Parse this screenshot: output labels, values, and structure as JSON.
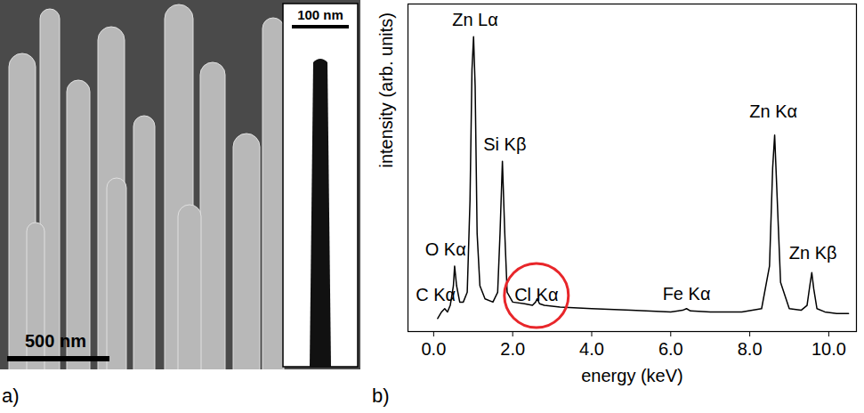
{
  "image_panel": {
    "letter": "a)",
    "scale_bar": "500 nm",
    "inset_scale_bar": "100 nm"
  },
  "chart_data": {
    "type": "line",
    "letter": "b)",
    "x_label": "energy (keV)",
    "y_label": "intensity (arb. units)",
    "color": "#000000",
    "x": [
      0.1,
      0.2,
      0.28,
      0.35,
      0.42,
      0.5,
      0.53,
      0.58,
      0.66,
      0.75,
      0.85,
      0.92,
      0.97,
      1.01,
      1.05,
      1.1,
      1.17,
      1.3,
      1.5,
      1.62,
      1.68,
      1.74,
      1.8,
      1.86,
      2.0,
      2.3,
      2.5,
      2.58,
      2.62,
      2.68,
      2.8,
      3.2,
      4.0,
      5.0,
      6.0,
      6.3,
      6.4,
      6.5,
      7.0,
      7.8,
      8.3,
      8.5,
      8.58,
      8.63,
      8.68,
      8.78,
      9.0,
      9.3,
      9.45,
      9.52,
      9.57,
      9.62,
      9.7,
      9.9,
      10.2,
      10.5
    ],
    "values": [
      4,
      6,
      7,
      6,
      8,
      14,
      20,
      14,
      9,
      9,
      12,
      40,
      80,
      90,
      75,
      30,
      14,
      10,
      9,
      12,
      30,
      52,
      30,
      12,
      9,
      8.5,
      8,
      9,
      10,
      8.5,
      8,
      7.5,
      7,
      6.5,
      6,
      6.5,
      7,
      6.3,
      6,
      6,
      7,
      20,
      50,
      60,
      45,
      15,
      7,
      6.5,
      8,
      14,
      18,
      13,
      7,
      6,
      5.5,
      5.5
    ],
    "xlim": [
      -0.65,
      10.7
    ],
    "xticks": [
      {
        "value": 0,
        "label": "0.0"
      },
      {
        "value": 2,
        "label": "2.0"
      },
      {
        "value": 4,
        "label": "4.0"
      },
      {
        "value": 6,
        "label": "6.0"
      },
      {
        "value": 8,
        "label": "8.0"
      },
      {
        "value": 10,
        "label": "10.0"
      }
    ],
    "ylim": [
      0,
      100
    ],
    "tick_labels": "x",
    "annotations": [
      {
        "text": "Zn Lα",
        "x": 1.05,
        "y": 95
      },
      {
        "text": "Si Kβ",
        "x": 1.8,
        "y": 57
      },
      {
        "text": "O Kα",
        "x": 0.3,
        "y": 25
      },
      {
        "text": "C Kα",
        "x": 0.05,
        "y": 11
      },
      {
        "text": "Cl Kα",
        "x": 2.6,
        "y": 11,
        "color": "#e8262a"
      },
      {
        "text": "Fe Kα",
        "x": 6.4,
        "y": 11.5
      },
      {
        "text": "Zn Kα",
        "x": 8.6,
        "y": 67
      },
      {
        "text": "Zn Kβ",
        "x": 9.6,
        "y": 24
      }
    ]
  }
}
